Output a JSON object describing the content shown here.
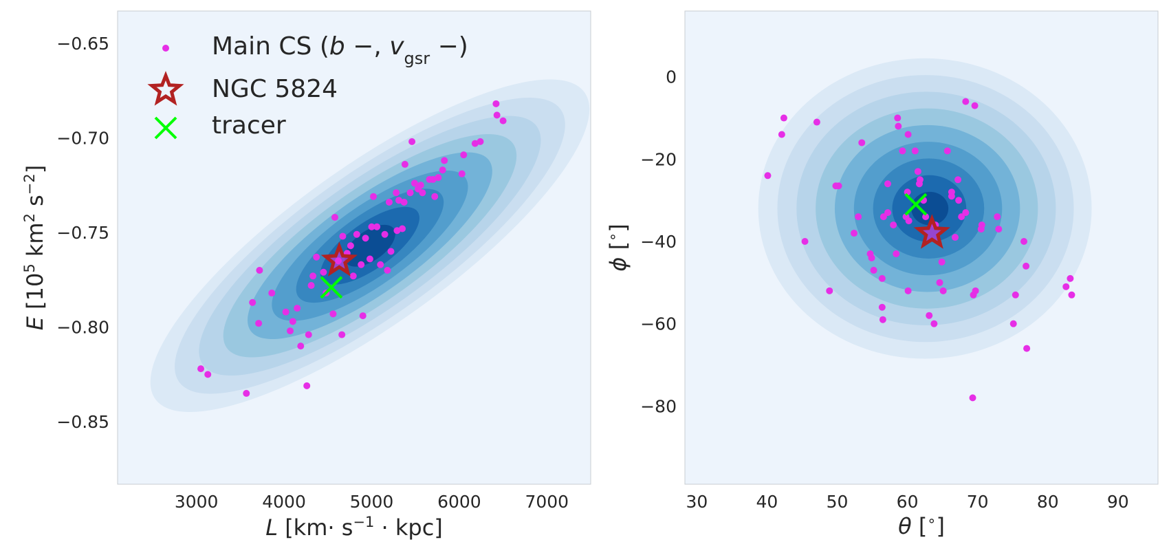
{
  "chart_data": [
    {
      "type": "scatter",
      "title": "",
      "xlabel": "L [km· s−1 · kpc]",
      "ylabel": "E [105 km2 s−2]",
      "xlim": [
        2100,
        7500
      ],
      "ylim": [
        -0.883,
        -0.633
      ],
      "xticks": [
        3000,
        4000,
        5000,
        6000,
        7000
      ],
      "xtick_labels": [
        "3000",
        "4000",
        "5000",
        "6000",
        "7000"
      ],
      "yticks": [
        -0.85,
        -0.8,
        -0.75,
        -0.7,
        -0.65
      ],
      "ytick_labels": [
        "−0.85",
        "−0.80",
        "−0.75",
        "−0.70",
        "−0.65"
      ],
      "grid": false,
      "legend_position": "top-left",
      "kde": {
        "type": "density-contour",
        "center": [
          4980,
          -0.757
        ],
        "sd_major": 700,
        "sd_minor": 210,
        "levels": 9,
        "extent": [
          2300,
          7200,
          -0.835,
          -0.673
        ]
      },
      "series": [
        {
          "name": "Main CS",
          "color": "#e62ee6",
          "marker": "dot",
          "points": [
            [
              3050,
              -0.822
            ],
            [
              3130,
              -0.825
            ],
            [
              3570,
              -0.835
            ],
            [
              3640,
              -0.787
            ],
            [
              3720,
              -0.77
            ],
            [
              3710,
              -0.798
            ],
            [
              3860,
              -0.782
            ],
            [
              4020,
              -0.792
            ],
            [
              4070,
              -0.802
            ],
            [
              4100,
              -0.797
            ],
            [
              4150,
              -0.79
            ],
            [
              4190,
              -0.81
            ],
            [
              4260,
              -0.831
            ],
            [
              4280,
              -0.804
            ],
            [
              4310,
              -0.778
            ],
            [
              4330,
              -0.773
            ],
            [
              4370,
              -0.763
            ],
            [
              4450,
              -0.771
            ],
            [
              4480,
              -0.782
            ],
            [
              4560,
              -0.793
            ],
            [
              4580,
              -0.742
            ],
            [
              4620,
              -0.765
            ],
            [
              4660,
              -0.804
            ],
            [
              4670,
              -0.752
            ],
            [
              4720,
              -0.761
            ],
            [
              4760,
              -0.757
            ],
            [
              4790,
              -0.773
            ],
            [
              4830,
              -0.751
            ],
            [
              4880,
              -0.767
            ],
            [
              4900,
              -0.794
            ],
            [
              4930,
              -0.753
            ],
            [
              4980,
              -0.764
            ],
            [
              5000,
              -0.747
            ],
            [
              5020,
              -0.731
            ],
            [
              5060,
              -0.747
            ],
            [
              5100,
              -0.767
            ],
            [
              5150,
              -0.751
            ],
            [
              5180,
              -0.77
            ],
            [
              5200,
              -0.734
            ],
            [
              5220,
              -0.76
            ],
            [
              5280,
              -0.729
            ],
            [
              5290,
              -0.749
            ],
            [
              5310,
              -0.733
            ],
            [
              5350,
              -0.748
            ],
            [
              5370,
              -0.734
            ],
            [
              5380,
              -0.714
            ],
            [
              5440,
              -0.729
            ],
            [
              5460,
              -0.702
            ],
            [
              5490,
              -0.724
            ],
            [
              5530,
              -0.727
            ],
            [
              5560,
              -0.725
            ],
            [
              5580,
              -0.729
            ],
            [
              5660,
              -0.722
            ],
            [
              5700,
              -0.722
            ],
            [
              5720,
              -0.731
            ],
            [
              5760,
              -0.721
            ],
            [
              5810,
              -0.717
            ],
            [
              5830,
              -0.712
            ],
            [
              6030,
              -0.719
            ],
            [
              6050,
              -0.709
            ],
            [
              6180,
              -0.703
            ],
            [
              6240,
              -0.702
            ],
            [
              6420,
              -0.682
            ],
            [
              6430,
              -0.688
            ],
            [
              6500,
              -0.691
            ]
          ]
        },
        {
          "name": "NGC 5824",
          "color": "#b22222",
          "marker": "star",
          "points": [
            [
              4630,
              -0.765
            ]
          ]
        },
        {
          "name": "tracer",
          "color": "#00ff00",
          "marker": "x",
          "points": [
            [
              4540,
              -0.779
            ]
          ]
        }
      ]
    },
    {
      "type": "scatter",
      "title": "",
      "xlabel": "θ [∘]",
      "ylabel": "ϕ [∘]",
      "xlim": [
        28.3,
        95.7
      ],
      "ylim": [
        -99,
        16
      ],
      "xticks": [
        30,
        40,
        50,
        60,
        70,
        80,
        90
      ],
      "xtick_labels": [
        "30",
        "40",
        "50",
        "60",
        "70",
        "80",
        "90"
      ],
      "yticks": [
        -80,
        -60,
        -40,
        -20,
        0
      ],
      "ytick_labels": [
        "−80",
        "−60",
        "−40",
        "−20",
        "0"
      ],
      "grid": false,
      "kde": {
        "type": "density-contour",
        "center": [
          62.5,
          -32
        ],
        "sd_major": 9.5,
        "sd_minor": 7.5,
        "levels": 9,
        "extent": [
          38.5,
          86,
          -76,
          -3
        ]
      },
      "series": [
        {
          "name": "Main CS",
          "color": "#e62ee6",
          "marker": "dot",
          "points": [
            [
              42.4,
              -10
            ],
            [
              42.1,
              -14
            ],
            [
              40.1,
              -24
            ],
            [
              47.1,
              -11
            ],
            [
              45.4,
              -40
            ],
            [
              48.9,
              -52
            ],
            [
              49.8,
              -26.5
            ],
            [
              50.2,
              -26.5
            ],
            [
              53.0,
              -34
            ],
            [
              53.5,
              -16
            ],
            [
              52.4,
              -38
            ],
            [
              54.7,
              -43
            ],
            [
              54.9,
              -44
            ],
            [
              55.2,
              -47
            ],
            [
              56.4,
              -49
            ],
            [
              56.4,
              -56
            ],
            [
              56.5,
              -59
            ],
            [
              56.6,
              -34
            ],
            [
              57.2,
              -26
            ],
            [
              57.2,
              -33
            ],
            [
              58.0,
              -36
            ],
            [
              58.4,
              -43
            ],
            [
              58.6,
              -10
            ],
            [
              58.7,
              -12
            ],
            [
              59.3,
              -18
            ],
            [
              59.8,
              -34
            ],
            [
              60.0,
              -28
            ],
            [
              60.2,
              -35
            ],
            [
              60.1,
              -14
            ],
            [
              60.1,
              -52
            ],
            [
              61.1,
              -18
            ],
            [
              61.5,
              -23
            ],
            [
              61.8,
              -25
            ],
            [
              61.7,
              -26
            ],
            [
              62.3,
              -30
            ],
            [
              62.6,
              -34
            ],
            [
              63.1,
              -58
            ],
            [
              63.8,
              -60
            ],
            [
              64.0,
              -36
            ],
            [
              64.6,
              -50
            ],
            [
              64.9,
              -45
            ],
            [
              65.1,
              -52
            ],
            [
              65.7,
              -18
            ],
            [
              66.3,
              -28
            ],
            [
              66.3,
              -29
            ],
            [
              66.8,
              -39
            ],
            [
              67.2,
              -25
            ],
            [
              67.3,
              -30
            ],
            [
              67.7,
              -34
            ],
            [
              68.3,
              -33
            ],
            [
              68.3,
              -6
            ],
            [
              69.6,
              -7
            ],
            [
              69.4,
              -53
            ],
            [
              69.7,
              -52
            ],
            [
              70.5,
              -37
            ],
            [
              70.6,
              -36
            ],
            [
              72.8,
              -34
            ],
            [
              73.0,
              -37
            ],
            [
              75.1,
              -60
            ],
            [
              75.4,
              -53
            ],
            [
              76.6,
              -40
            ],
            [
              76.9,
              -46
            ],
            [
              77.0,
              -66
            ],
            [
              82.6,
              -51
            ],
            [
              83.2,
              -49
            ],
            [
              83.4,
              -53
            ],
            [
              69.3,
              -78
            ]
          ]
        },
        {
          "name": "NGC 5824",
          "color": "#b22222",
          "marker": "star",
          "points": [
            [
              63.5,
              -38
            ]
          ]
        },
        {
          "name": "tracer",
          "color": "#00ff00",
          "marker": "x",
          "points": [
            [
              61.2,
              -31
            ]
          ]
        }
      ]
    }
  ],
  "legend": {
    "items": [
      {
        "name": "Main CS (b −, vgsr −)",
        "marker": "dot"
      },
      {
        "name": "NGC 5824",
        "marker": "star"
      },
      {
        "name": "tracer",
        "marker": "x"
      }
    ]
  }
}
